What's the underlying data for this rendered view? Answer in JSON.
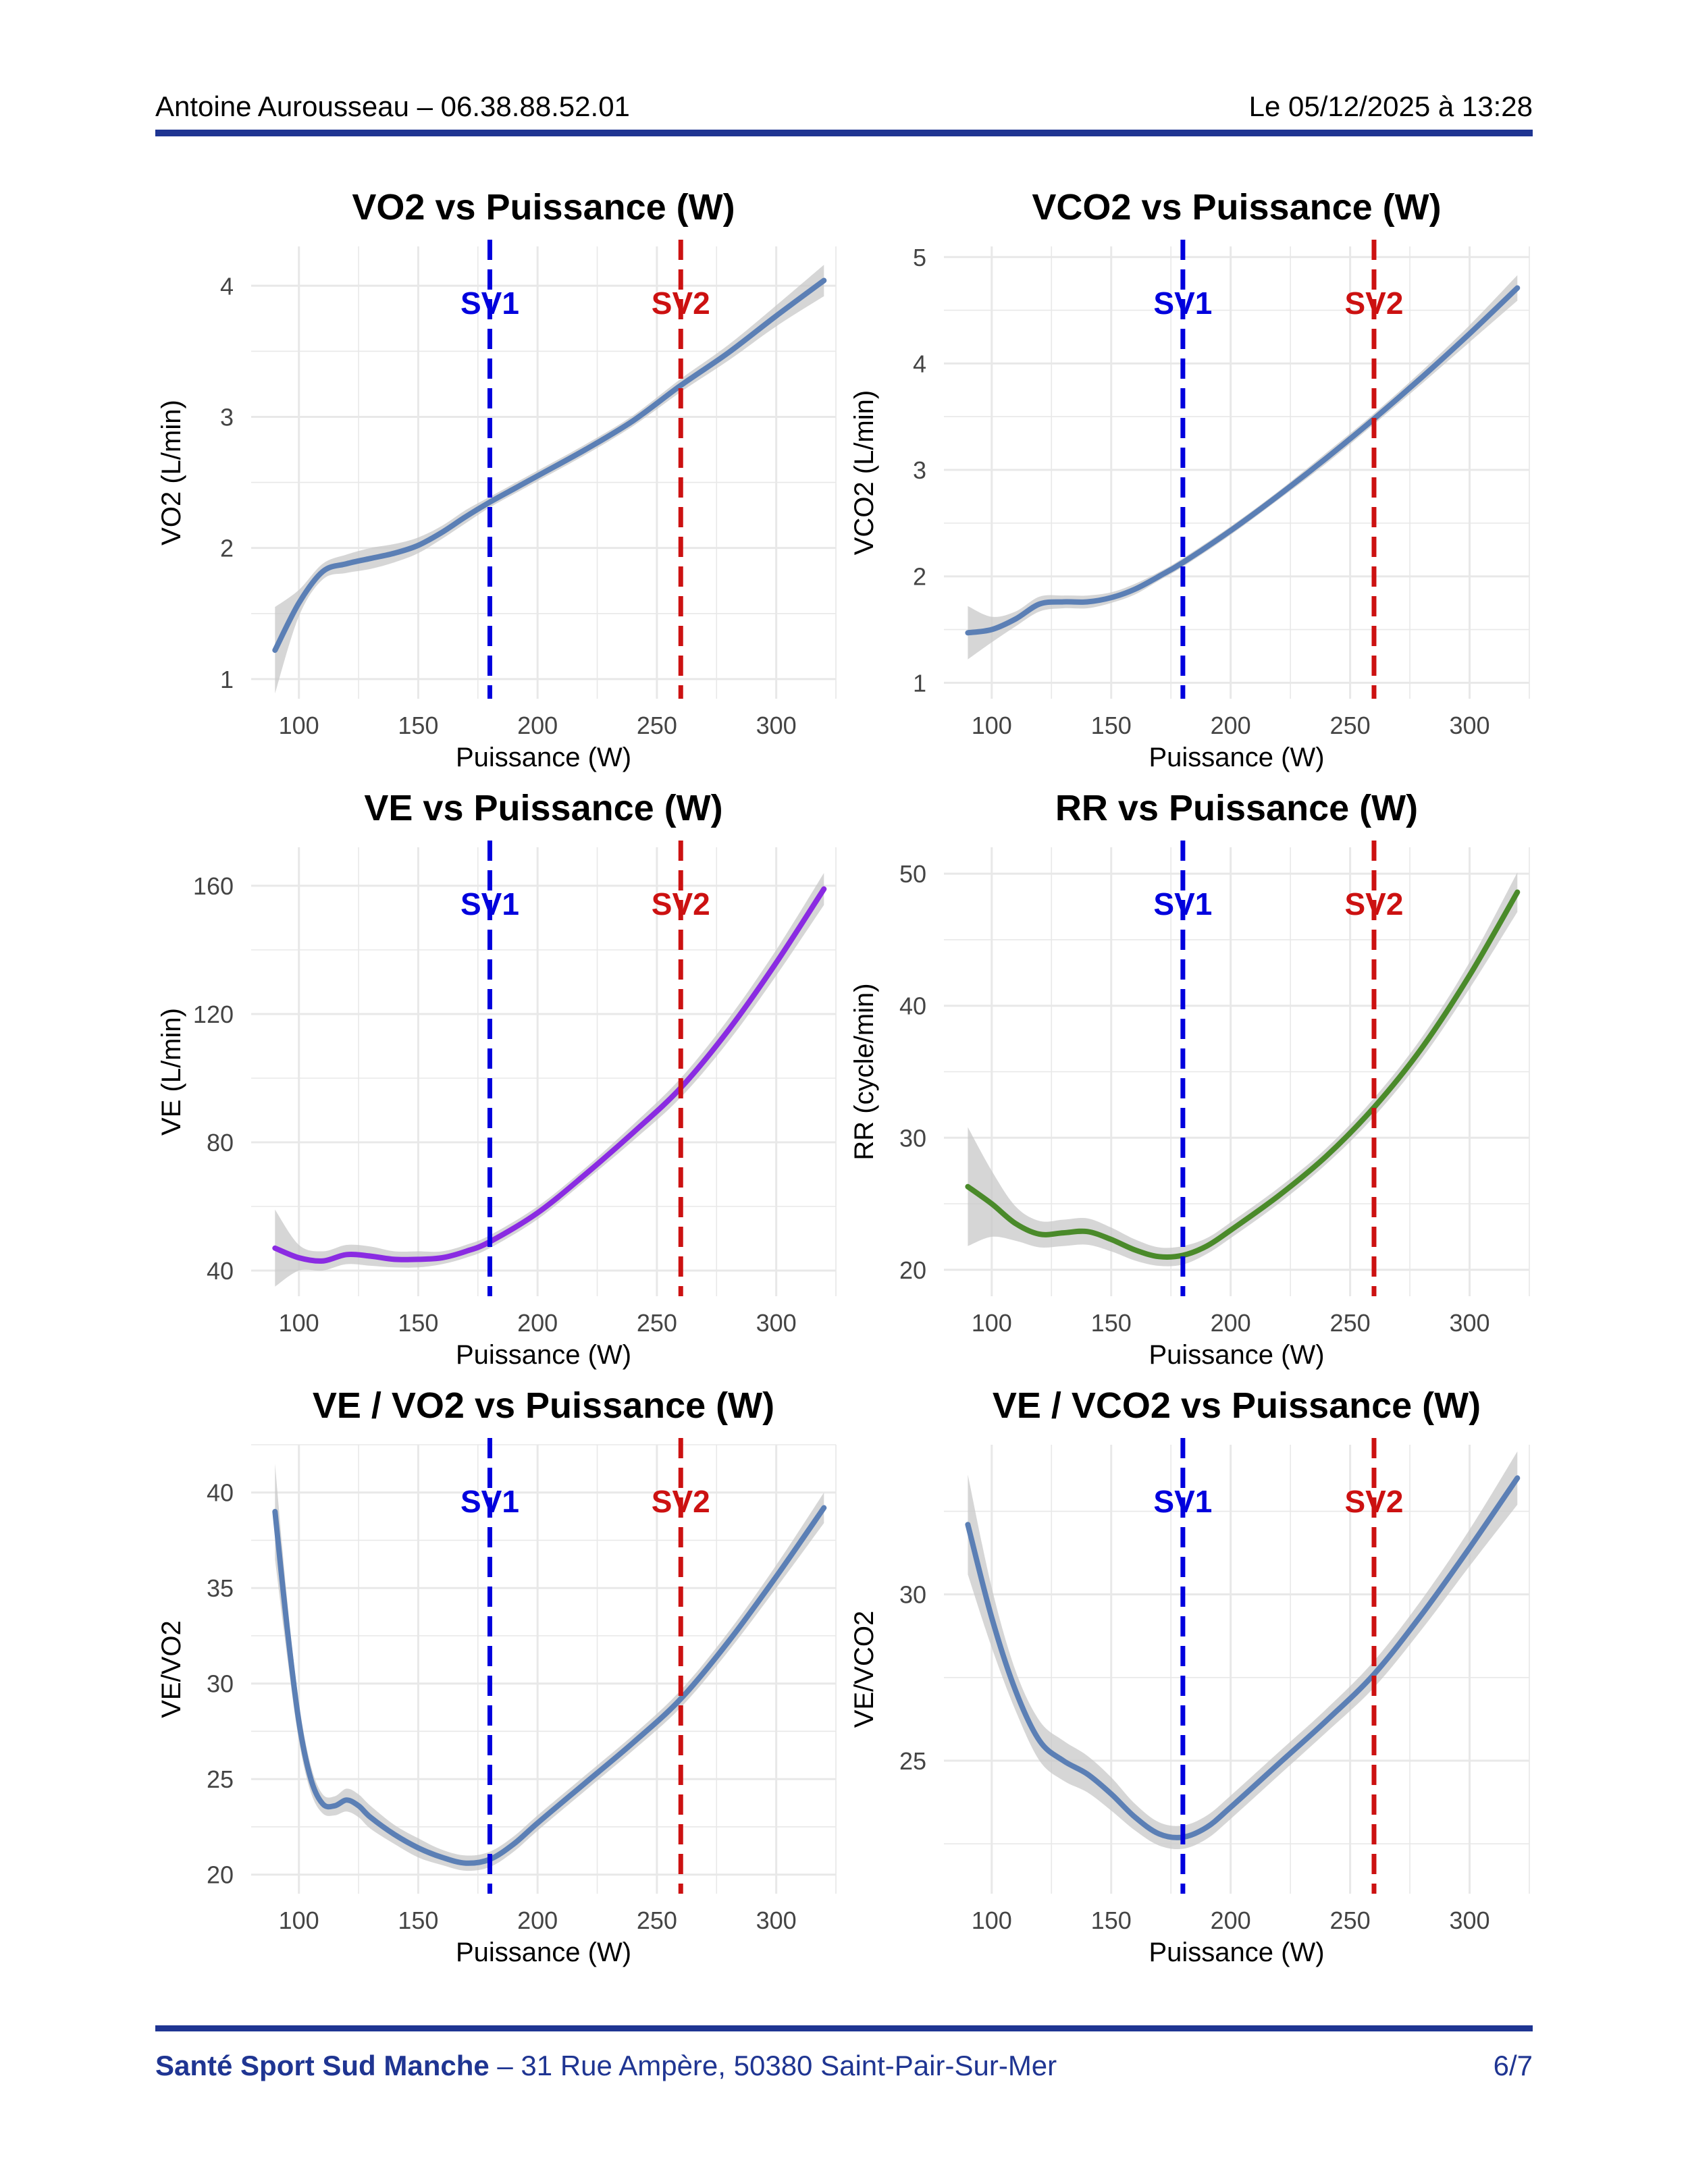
{
  "header": {
    "left": "Antoine Aurousseau – 06.38.88.52.01",
    "right": "Le 05/12/2025 à 13:28"
  },
  "footer": {
    "org": "Santé Sport Sud Manche",
    "address": " – 31 Rue Ampère, 50380 Saint-Pair-Sur-Mer",
    "page": "6/7"
  },
  "colors": {
    "brand": "#1f3592",
    "sv1": "#0000dd",
    "sv2": "#cc1111",
    "curve_blue": "#5b7fb5",
    "curve_purple": "#8a2be2",
    "curve_green": "#4a8a2a",
    "ribbon": "#c8c8c8",
    "grid": "#e8e8e8"
  },
  "chart_data": [
    {
      "type": "line",
      "title": "VO2 vs Puissance (W)",
      "xlabel": "Puissance (W)",
      "ylabel": "VO2 (L/min)",
      "xlim": [
        80,
        325
      ],
      "ylim": [
        0.85,
        4.3
      ],
      "xticks": [
        100,
        150,
        200,
        250,
        300
      ],
      "xtick_labels": [
        "100",
        "150",
        "200",
        "250",
        "300"
      ],
      "yticks": [
        1,
        2,
        3,
        4
      ],
      "ytick_labels": [
        "1",
        "2",
        "3",
        "4"
      ],
      "color": "#5b7fb5",
      "thresholds": [
        {
          "label": "SV1",
          "x": 180,
          "color": "#0000dd"
        },
        {
          "label": "SV2",
          "x": 260,
          "color": "#cc1111"
        }
      ],
      "series": [
        {
          "name": "VO2",
          "x": [
            90,
            100,
            110,
            120,
            130,
            140,
            150,
            160,
            170,
            180,
            190,
            200,
            220,
            240,
            260,
            280,
            300,
            320
          ],
          "y": [
            1.22,
            1.58,
            1.82,
            1.88,
            1.92,
            1.96,
            2.02,
            2.12,
            2.24,
            2.35,
            2.45,
            2.55,
            2.75,
            2.97,
            3.24,
            3.49,
            3.77,
            4.04
          ],
          "band": [
            0.33,
            0.1,
            0.06,
            0.07,
            0.08,
            0.07,
            0.06,
            0.05,
            0.05,
            0.04,
            0.04,
            0.04,
            0.04,
            0.04,
            0.05,
            0.06,
            0.08,
            0.12
          ]
        }
      ]
    },
    {
      "type": "line",
      "title": "VCO2 vs Puissance (W)",
      "xlabel": "Puissance (W)",
      "ylabel": "VCO2 (L/min)",
      "xlim": [
        80,
        325
      ],
      "ylim": [
        0.85,
        5.1
      ],
      "xticks": [
        100,
        150,
        200,
        250,
        300
      ],
      "xtick_labels": [
        "100",
        "150",
        "200",
        "250",
        "300"
      ],
      "yticks": [
        1,
        2,
        3,
        4,
        5
      ],
      "ytick_labels": [
        "1",
        "2",
        "3",
        "4",
        "5"
      ],
      "color": "#5b7fb5",
      "thresholds": [
        {
          "label": "SV1",
          "x": 180,
          "color": "#0000dd"
        },
        {
          "label": "SV2",
          "x": 260,
          "color": "#cc1111"
        }
      ],
      "series": [
        {
          "name": "VCO2",
          "x": [
            90,
            100,
            110,
            120,
            130,
            140,
            150,
            160,
            170,
            180,
            200,
            220,
            240,
            260,
            280,
            300,
            320
          ],
          "y": [
            1.47,
            1.5,
            1.6,
            1.74,
            1.76,
            1.76,
            1.8,
            1.88,
            2.0,
            2.13,
            2.43,
            2.76,
            3.11,
            3.48,
            3.87,
            4.28,
            4.71
          ],
          "band": [
            0.25,
            0.12,
            0.07,
            0.07,
            0.06,
            0.06,
            0.05,
            0.05,
            0.04,
            0.04,
            0.04,
            0.04,
            0.05,
            0.05,
            0.06,
            0.08,
            0.12
          ]
        }
      ]
    },
    {
      "type": "line",
      "title": "VE vs Puissance (W)",
      "xlabel": "Puissance (W)",
      "ylabel": "VE (L/min)",
      "xlim": [
        80,
        325
      ],
      "ylim": [
        32,
        172
      ],
      "xticks": [
        100,
        150,
        200,
        250,
        300
      ],
      "xtick_labels": [
        "100",
        "150",
        "200",
        "250",
        "300"
      ],
      "yticks": [
        40,
        80,
        120,
        160
      ],
      "ytick_labels": [
        "40",
        "80",
        "120",
        "160"
      ],
      "color": "#8a2be2",
      "thresholds": [
        {
          "label": "SV1",
          "x": 180,
          "color": "#0000dd"
        },
        {
          "label": "SV2",
          "x": 260,
          "color": "#cc1111"
        }
      ],
      "series": [
        {
          "name": "VE",
          "x": [
            90,
            100,
            110,
            120,
            130,
            140,
            150,
            160,
            170,
            180,
            200,
            220,
            240,
            260,
            280,
            300,
            320
          ],
          "y": [
            47,
            44,
            43,
            45,
            44.5,
            43.5,
            43.5,
            44,
            46,
            49,
            58,
            70,
            83,
            97,
            115,
            136,
            159
          ],
          "band": [
            12,
            4,
            3,
            3,
            3,
            2.5,
            2.5,
            2,
            2,
            2,
            2,
            2,
            2.5,
            3,
            3.5,
            4,
            5
          ]
        }
      ]
    },
    {
      "type": "line",
      "title": "RR vs Puissance (W)",
      "xlabel": "Puissance (W)",
      "ylabel": "RR (cycle/min)",
      "xlim": [
        80,
        325
      ],
      "ylim": [
        18,
        52
      ],
      "xticks": [
        100,
        150,
        200,
        250,
        300
      ],
      "xtick_labels": [
        "100",
        "150",
        "200",
        "250",
        "300"
      ],
      "yticks": [
        20,
        30,
        40,
        50
      ],
      "ytick_labels": [
        "20",
        "30",
        "40",
        "50"
      ],
      "color": "#4a8a2a",
      "thresholds": [
        {
          "label": "SV1",
          "x": 180,
          "color": "#0000dd"
        },
        {
          "label": "SV2",
          "x": 260,
          "color": "#cc1111"
        }
      ],
      "series": [
        {
          "name": "RR",
          "x": [
            90,
            100,
            110,
            120,
            130,
            140,
            150,
            160,
            170,
            180,
            190,
            200,
            220,
            240,
            260,
            280,
            300,
            320
          ],
          "y": [
            26.3,
            25.0,
            23.5,
            22.7,
            22.8,
            22.9,
            22.3,
            21.5,
            21.0,
            21.1,
            21.8,
            23.0,
            25.6,
            28.6,
            32.3,
            36.8,
            42.3,
            48.6
          ],
          "band": [
            4.5,
            2.5,
            1.3,
            1.0,
            1.0,
            1.0,
            0.9,
            0.8,
            0.7,
            0.7,
            0.6,
            0.6,
            0.6,
            0.6,
            0.7,
            0.8,
            1.0,
            1.5
          ]
        }
      ]
    },
    {
      "type": "line",
      "title": "VE / VO2 vs Puissance (W)",
      "xlabel": "Puissance (W)",
      "ylabel": "VE/VO2",
      "xlim": [
        80,
        325
      ],
      "ylim": [
        19,
        42.5
      ],
      "xticks": [
        100,
        150,
        200,
        250,
        300
      ],
      "xtick_labels": [
        "100",
        "150",
        "200",
        "250",
        "300"
      ],
      "yticks": [
        20,
        25,
        30,
        35,
        40
      ],
      "ytick_labels": [
        "20",
        "25",
        "30",
        "35",
        "40"
      ],
      "color": "#5b7fb5",
      "thresholds": [
        {
          "label": "SV1",
          "x": 180,
          "color": "#0000dd"
        },
        {
          "label": "SV2",
          "x": 260,
          "color": "#cc1111"
        }
      ],
      "series": [
        {
          "name": "VE/VO2",
          "x": [
            90,
            95,
            100,
            105,
            110,
            115,
            120,
            125,
            130,
            140,
            150,
            160,
            170,
            180,
            190,
            200,
            220,
            240,
            260,
            280,
            300,
            320
          ],
          "y": [
            39.0,
            33.0,
            28.0,
            25.0,
            23.7,
            23.6,
            23.9,
            23.6,
            23.0,
            22.1,
            21.4,
            20.9,
            20.6,
            20.8,
            21.6,
            22.7,
            24.8,
            26.9,
            29.2,
            32.2,
            35.6,
            39.2
          ],
          "band": [
            2.5,
            1.5,
            1.0,
            0.7,
            0.5,
            0.5,
            0.6,
            0.6,
            0.6,
            0.5,
            0.5,
            0.4,
            0.4,
            0.4,
            0.4,
            0.4,
            0.4,
            0.4,
            0.45,
            0.5,
            0.6,
            0.8
          ]
        }
      ]
    },
    {
      "type": "line",
      "title": "VE / VCO2 vs Puissance (W)",
      "xlabel": "Puissance (W)",
      "ylabel": "VE/VCO2",
      "xlim": [
        80,
        325
      ],
      "ylim": [
        21,
        34.5
      ],
      "xticks": [
        100,
        150,
        200,
        250,
        300
      ],
      "xtick_labels": [
        "100",
        "150",
        "200",
        "250",
        "300"
      ],
      "yticks": [
        25,
        30
      ],
      "ytick_labels": [
        "25",
        "30"
      ],
      "color": "#5b7fb5",
      "thresholds": [
        {
          "label": "SV1",
          "x": 180,
          "color": "#0000dd"
        },
        {
          "label": "SV2",
          "x": 260,
          "color": "#cc1111"
        }
      ],
      "series": [
        {
          "name": "VE/VCO2",
          "x": [
            90,
            100,
            110,
            120,
            130,
            140,
            150,
            160,
            170,
            180,
            190,
            200,
            220,
            240,
            260,
            280,
            300,
            320
          ],
          "y": [
            32.1,
            29.3,
            27.1,
            25.6,
            25.0,
            24.6,
            24.0,
            23.3,
            22.8,
            22.7,
            23.0,
            23.6,
            24.9,
            26.2,
            27.6,
            29.4,
            31.4,
            33.5
          ],
          "band": [
            1.5,
            0.9,
            0.6,
            0.6,
            0.6,
            0.55,
            0.5,
            0.4,
            0.35,
            0.35,
            0.35,
            0.35,
            0.35,
            0.35,
            0.4,
            0.45,
            0.55,
            0.8
          ]
        }
      ]
    }
  ]
}
